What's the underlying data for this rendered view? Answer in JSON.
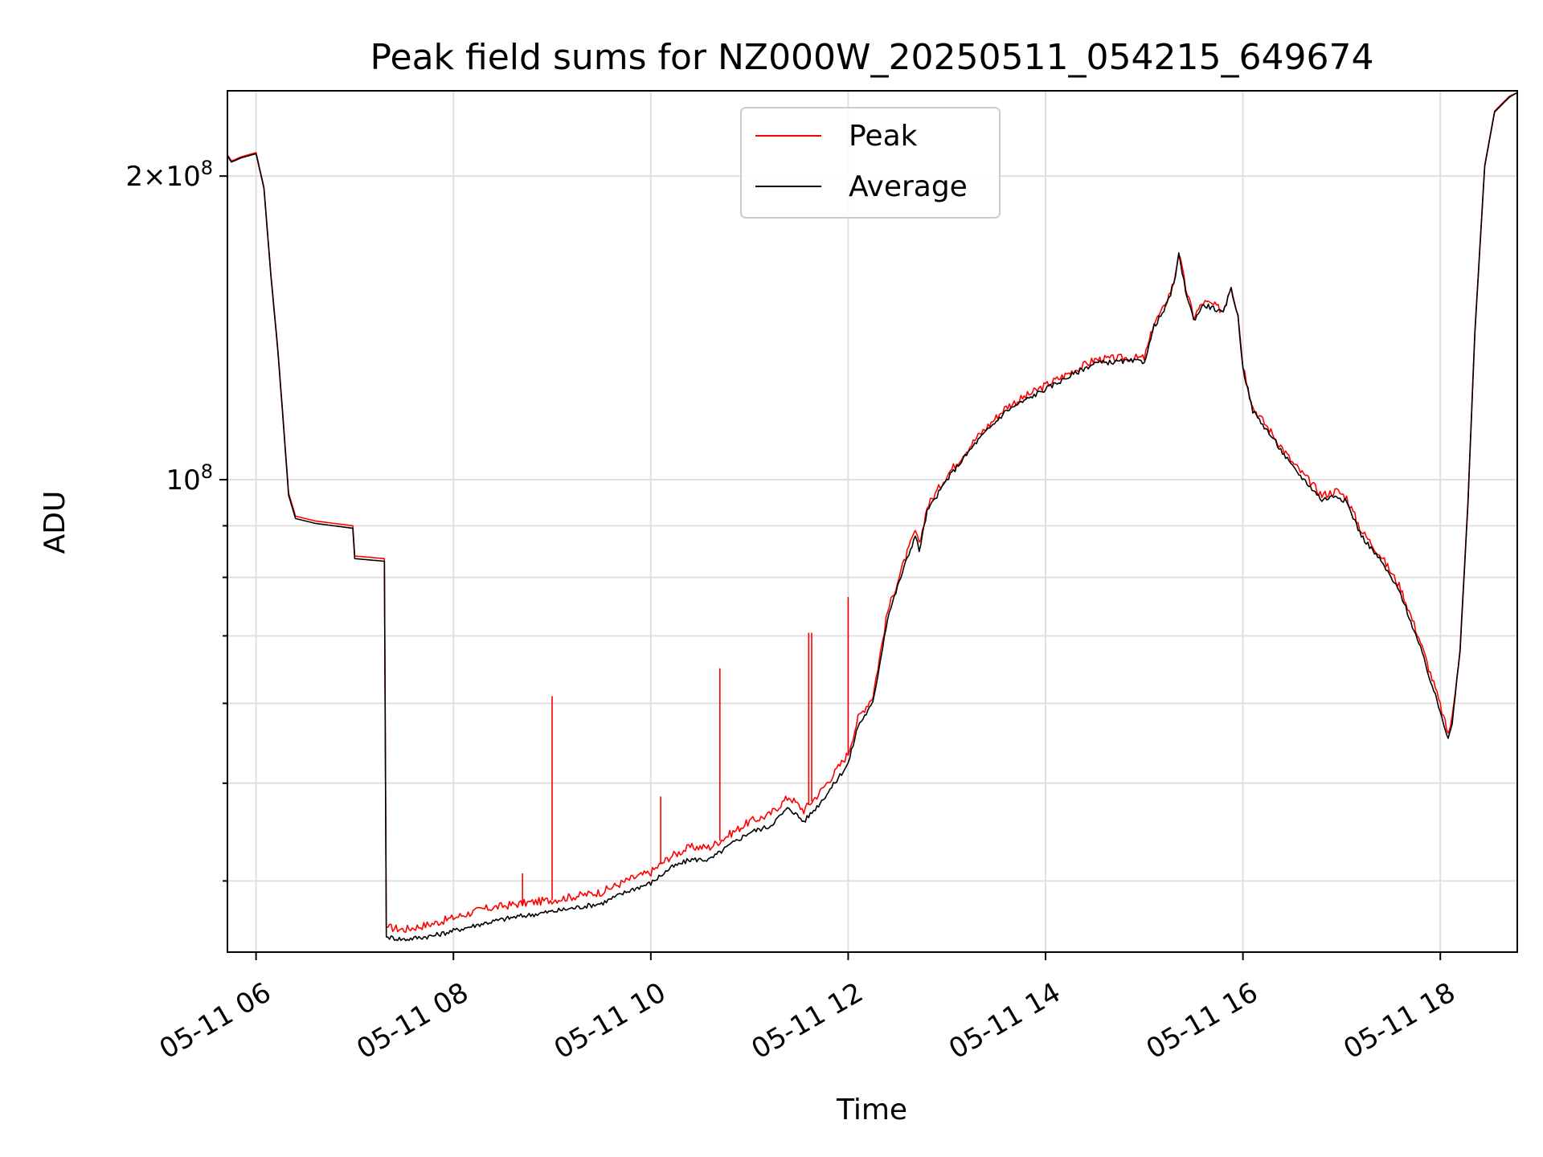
{
  "chart_data": {
    "type": "line",
    "title": "Peak field sums for NZ000W_20250511_054215_649674",
    "xlabel": "Time",
    "ylabel": "ADU",
    "yscale": "log",
    "grid": true,
    "legend_position": "top-center",
    "xlim": [
      "05-11 05:42",
      "05-11 18:47"
    ],
    "ylim": [
      34000000,
      243000000
    ],
    "x_ticks": [
      "05-11 06",
      "05-11 08",
      "05-11 10",
      "05-11 12",
      "05-11 14",
      "05-11 16",
      "05-11 18"
    ],
    "x_tick_hours": [
      6,
      8,
      10,
      12,
      14,
      16,
      18
    ],
    "y_major_ticks": [
      {
        "value": 100000000,
        "base": "10",
        "exp": "8",
        "mantissa": ""
      },
      {
        "value": 200000000,
        "base": "10",
        "exp": "8",
        "mantissa": "2×"
      }
    ],
    "y_minor_ticks": [
      40000000,
      50000000,
      60000000,
      70000000,
      80000000,
      90000000
    ],
    "x_unit": "hour of 05-11",
    "series": [
      {
        "name": "Peak",
        "color": "#ff0000",
        "points": [
          [
            5.71,
            210000000
          ],
          [
            5.75,
            207000000
          ],
          [
            5.85,
            209000000
          ],
          [
            6.0,
            211000000
          ],
          [
            6.08,
            195000000
          ],
          [
            6.15,
            160000000
          ],
          [
            6.22,
            135000000
          ],
          [
            6.28,
            113000000
          ],
          [
            6.33,
            97000000
          ],
          [
            6.4,
            92000000
          ],
          [
            6.6,
            91000000
          ],
          [
            6.98,
            90000000
          ],
          [
            7.0,
            84000000
          ],
          [
            7.3,
            83500000
          ],
          [
            7.32,
            36000000
          ],
          [
            7.5,
            35800000
          ],
          [
            7.8,
            36300000
          ],
          [
            8.3,
            37500000
          ],
          [
            8.6,
            37900000
          ],
          [
            9.0,
            38300000
          ],
          [
            9.5,
            39000000
          ],
          [
            9.8,
            40200000
          ],
          [
            10.0,
            40800000
          ],
          [
            10.2,
            42300000
          ],
          [
            10.4,
            43200000
          ],
          [
            10.6,
            43200000
          ],
          [
            10.8,
            44500000
          ],
          [
            11.0,
            45800000
          ],
          [
            11.2,
            46500000
          ],
          [
            11.4,
            48500000
          ],
          [
            11.55,
            47000000
          ],
          [
            11.7,
            48800000
          ],
          [
            11.85,
            51000000
          ],
          [
            12.0,
            53500000
          ],
          [
            12.1,
            58000000
          ],
          [
            12.25,
            61000000
          ],
          [
            12.4,
            74000000
          ],
          [
            12.55,
            82000000
          ],
          [
            12.68,
            89000000
          ],
          [
            12.72,
            86000000
          ],
          [
            12.8,
            94000000
          ],
          [
            13.0,
            101000000
          ],
          [
            13.3,
            110000000
          ],
          [
            13.6,
            118000000
          ],
          [
            14.0,
            124000000
          ],
          [
            14.3,
            128500000
          ],
          [
            14.5,
            131500000
          ],
          [
            14.8,
            132000000
          ],
          [
            15.0,
            132000000
          ],
          [
            15.05,
            137000000
          ],
          [
            15.1,
            143000000
          ],
          [
            15.2,
            148000000
          ],
          [
            15.3,
            157000000
          ],
          [
            15.35,
            168000000
          ],
          [
            15.42,
            155000000
          ],
          [
            15.5,
            145000000
          ],
          [
            15.6,
            150000000
          ],
          [
            15.7,
            149000000
          ],
          [
            15.8,
            147000000
          ],
          [
            15.88,
            156000000
          ],
          [
            15.95,
            146000000
          ],
          [
            16.0,
            130000000
          ],
          [
            16.1,
            118000000
          ],
          [
            16.3,
            111000000
          ],
          [
            16.5,
            104000000
          ],
          [
            16.7,
            99000000
          ],
          [
            16.8,
            96500000
          ],
          [
            16.95,
            97500000
          ],
          [
            17.05,
            96000000
          ],
          [
            17.2,
            89000000
          ],
          [
            17.4,
            84000000
          ],
          [
            17.6,
            78000000
          ],
          [
            17.8,
            69000000
          ],
          [
            17.95,
            62000000
          ],
          [
            18.08,
            56000000
          ],
          [
            18.12,
            58000000
          ],
          [
            18.2,
            68000000
          ],
          [
            18.28,
            95000000
          ],
          [
            18.35,
            140000000
          ],
          [
            18.45,
            205000000
          ],
          [
            18.55,
            232000000
          ],
          [
            18.7,
            240000000
          ],
          [
            18.78,
            242000000
          ]
        ],
        "spikes": [
          [
            9.0,
            61000000
          ],
          [
            10.7,
            65000000
          ],
          [
            11.6,
            70500000
          ],
          [
            11.63,
            70500000
          ],
          [
            12.0,
            76500000
          ],
          [
            10.1,
            48500000
          ],
          [
            8.7,
            40700000
          ]
        ]
      },
      {
        "name": "Average",
        "color": "#000000",
        "points": [
          [
            5.71,
            209500000
          ],
          [
            5.75,
            206500000
          ],
          [
            5.85,
            208500000
          ],
          [
            6.0,
            210500000
          ],
          [
            6.08,
            194500000
          ],
          [
            6.15,
            159500000
          ],
          [
            6.22,
            134500000
          ],
          [
            6.28,
            112500000
          ],
          [
            6.33,
            96500000
          ],
          [
            6.4,
            91500000
          ],
          [
            6.6,
            90500000
          ],
          [
            6.98,
            89500000
          ],
          [
            7.0,
            83500000
          ],
          [
            7.3,
            83000000
          ],
          [
            7.32,
            35200000
          ],
          [
            7.5,
            35000000
          ],
          [
            7.8,
            35300000
          ],
          [
            8.3,
            36300000
          ],
          [
            8.6,
            36800000
          ],
          [
            9.0,
            37300000
          ],
          [
            9.5,
            38000000
          ],
          [
            9.8,
            39200000
          ],
          [
            10.0,
            39800000
          ],
          [
            10.2,
            41200000
          ],
          [
            10.4,
            42000000
          ],
          [
            10.6,
            42000000
          ],
          [
            10.8,
            43400000
          ],
          [
            11.0,
            44700000
          ],
          [
            11.2,
            45300000
          ],
          [
            11.4,
            47300000
          ],
          [
            11.55,
            45800000
          ],
          [
            11.7,
            47600000
          ],
          [
            11.85,
            49800000
          ],
          [
            12.0,
            52300000
          ],
          [
            12.1,
            57000000
          ],
          [
            12.25,
            60000000
          ],
          [
            12.4,
            73000000
          ],
          [
            12.55,
            81000000
          ],
          [
            12.68,
            88000000
          ],
          [
            12.72,
            85000000
          ],
          [
            12.8,
            93000000
          ],
          [
            13.0,
            100000000
          ],
          [
            13.3,
            109000000
          ],
          [
            13.6,
            117000000
          ],
          [
            14.0,
            123000000
          ],
          [
            14.3,
            127500000
          ],
          [
            14.5,
            130500000
          ],
          [
            14.8,
            131000000
          ],
          [
            15.0,
            131000000
          ],
          [
            15.05,
            136000000
          ],
          [
            15.1,
            142000000
          ],
          [
            15.2,
            147000000
          ],
          [
            15.3,
            156000000
          ],
          [
            15.35,
            167000000
          ],
          [
            15.42,
            154000000
          ],
          [
            15.5,
            144000000
          ],
          [
            15.6,
            149000000
          ],
          [
            15.7,
            148000000
          ],
          [
            15.8,
            146000000
          ],
          [
            15.88,
            155000000
          ],
          [
            15.95,
            145000000
          ],
          [
            16.0,
            129000000
          ],
          [
            16.1,
            117000000
          ],
          [
            16.3,
            110000000
          ],
          [
            16.5,
            103000000
          ],
          [
            16.7,
            98000000
          ],
          [
            16.8,
            95500000
          ],
          [
            16.95,
            96500000
          ],
          [
            17.05,
            95000000
          ],
          [
            17.2,
            88000000
          ],
          [
            17.4,
            83000000
          ],
          [
            17.6,
            77000000
          ],
          [
            17.8,
            68000000
          ],
          [
            17.95,
            61000000
          ],
          [
            18.08,
            55500000
          ],
          [
            18.12,
            57500000
          ],
          [
            18.2,
            67500000
          ],
          [
            18.28,
            94500000
          ],
          [
            18.35,
            139500000
          ],
          [
            18.45,
            204500000
          ],
          [
            18.55,
            231500000
          ],
          [
            18.7,
            239500000
          ],
          [
            18.78,
            242000000
          ]
        ]
      }
    ]
  }
}
